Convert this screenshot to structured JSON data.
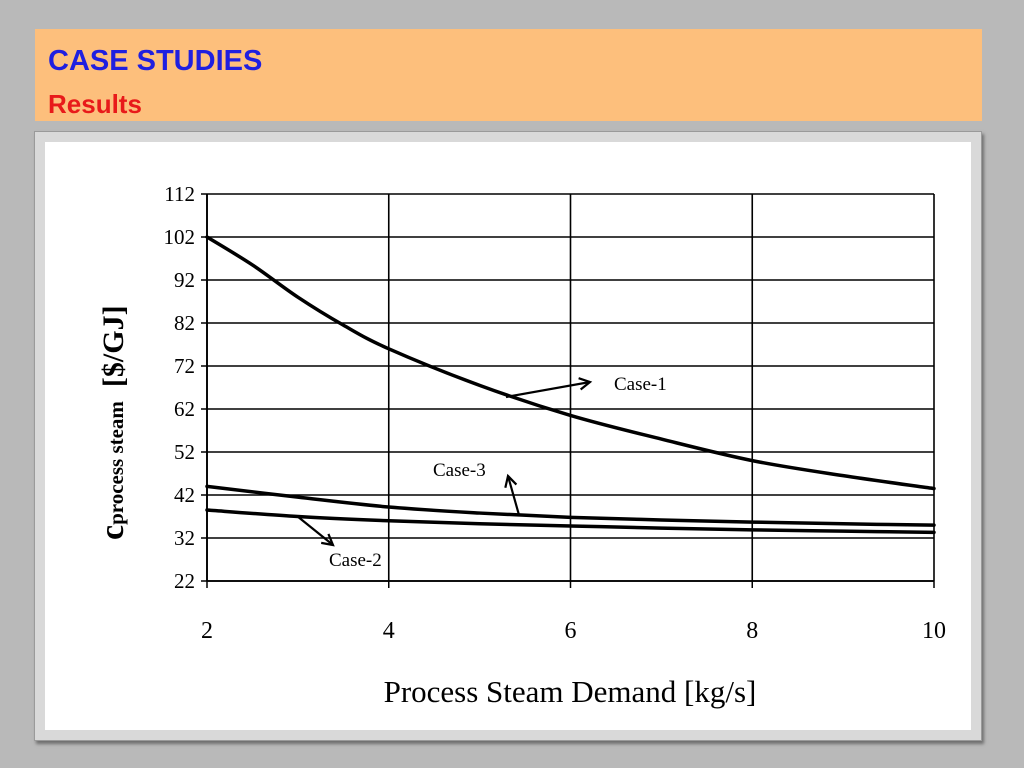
{
  "header": {
    "title": "CASE STUDIES",
    "subtitle": "Results"
  },
  "chart_data": {
    "type": "line",
    "xlabel": "Process Steam Demand [kg/s]",
    "ylabel_main": "c",
    "ylabel_sub": "process steam",
    "ylabel_unit": "[$/GJ]",
    "xlim": [
      2,
      10
    ],
    "ylim": [
      22,
      112
    ],
    "xticks": [
      2,
      4,
      6,
      8,
      10
    ],
    "yticks": [
      22,
      32,
      42,
      52,
      62,
      72,
      82,
      92,
      102,
      112
    ],
    "grid": {
      "horizontal": true,
      "vertical": true
    },
    "legend": "none (inline annotations)",
    "series": [
      {
        "name": "Case-1",
        "x": [
          2,
          2.5,
          3,
          3.5,
          4,
          5,
          6,
          7,
          8,
          9,
          10
        ],
        "y": [
          102,
          95.5,
          88,
          81.5,
          76,
          67.5,
          60.5,
          55,
          50,
          46.5,
          43.5
        ]
      },
      {
        "name": "Case-2",
        "x": [
          2,
          3,
          4,
          5,
          6,
          7,
          8,
          9,
          10
        ],
        "y": [
          38.5,
          37,
          36,
          35.3,
          34.8,
          34.3,
          33.9,
          33.6,
          33.3
        ]
      },
      {
        "name": "Case-3",
        "x": [
          2,
          3,
          4,
          5,
          6,
          7,
          8,
          9,
          10
        ],
        "y": [
          44,
          41.5,
          39.2,
          37.8,
          36.8,
          36.2,
          35.7,
          35.3,
          35
        ]
      }
    ],
    "annotations": [
      {
        "text": "Case-1",
        "series": "Case-1"
      },
      {
        "text": "Case-3",
        "series": "Case-3"
      },
      {
        "text": "Case-2",
        "series": "Case-2"
      }
    ]
  }
}
